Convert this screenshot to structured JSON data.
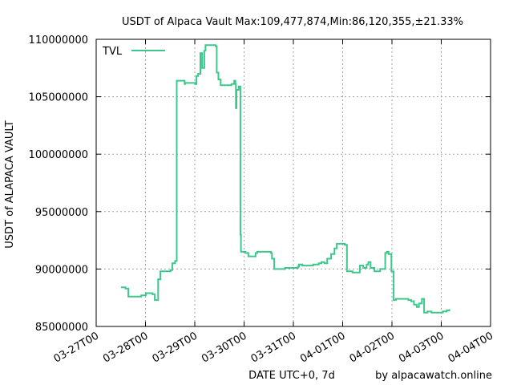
{
  "chart_data": {
    "type": "line",
    "title": "USDT of Alpaca Vault Max:109,477,874,Min:86,120,355,±21.33%",
    "xlabel": "DATE UTC+0, 7d",
    "ylabel": "USDT of ALAPACA VAULT",
    "footer": "by alpacawatch.online",
    "xlim": [
      0,
      7
    ],
    "ylim": [
      85000000,
      110000000
    ],
    "x_ticks": [
      "03-27T00",
      "03-28T00",
      "03-29T00",
      "03-30T00",
      "03-31T00",
      "04-01T00",
      "04-02T00",
      "04-03T00",
      "04-04T00"
    ],
    "y_ticks": [
      85000000,
      90000000,
      95000000,
      100000000,
      105000000,
      110000000
    ],
    "y_tick_labels": [
      "85000000",
      "90000000",
      "95000000",
      "100000000",
      "105000000",
      "110000000"
    ],
    "grid": true,
    "legend_position": "top-left",
    "series": [
      {
        "name": "TVL",
        "color": "#3cc88c",
        "step": true,
        "points": [
          [
            0.44,
            88400000
          ],
          [
            0.52,
            88300000
          ],
          [
            0.57,
            87600000
          ],
          [
            0.8,
            87700000
          ],
          [
            0.88,
            87900000
          ],
          [
            1.0,
            87800000
          ],
          [
            1.04,
            87300000
          ],
          [
            1.1,
            89100000
          ],
          [
            1.14,
            89800000
          ],
          [
            1.32,
            89900000
          ],
          [
            1.35,
            90500000
          ],
          [
            1.4,
            90700000
          ],
          [
            1.43,
            106400000
          ],
          [
            1.57,
            106100000
          ],
          [
            1.58,
            106200000
          ],
          [
            1.76,
            106100000
          ],
          [
            1.78,
            106800000
          ],
          [
            1.81,
            107000000
          ],
          [
            1.85,
            108800000
          ],
          [
            1.88,
            107500000
          ],
          [
            1.92,
            109000000
          ],
          [
            1.94,
            109500000
          ],
          [
            2.12,
            109400000
          ],
          [
            2.14,
            107100000
          ],
          [
            2.17,
            106500000
          ],
          [
            2.21,
            106000000
          ],
          [
            2.4,
            106100000
          ],
          [
            2.45,
            106400000
          ],
          [
            2.47,
            106100000
          ],
          [
            2.48,
            104000000
          ],
          [
            2.49,
            105600000
          ],
          [
            2.53,
            105900000
          ],
          [
            2.56,
            93000000
          ],
          [
            2.57,
            91500000
          ],
          [
            2.65,
            91400000
          ],
          [
            2.7,
            91100000
          ],
          [
            2.83,
            91400000
          ],
          [
            2.86,
            91500000
          ],
          [
            3.1,
            91400000
          ],
          [
            3.12,
            90900000
          ],
          [
            3.16,
            90000000
          ],
          [
            3.35,
            90100000
          ],
          [
            3.58,
            90200000
          ],
          [
            3.6,
            90400000
          ],
          [
            3.66,
            90300000
          ],
          [
            3.85,
            90400000
          ],
          [
            3.95,
            90500000
          ],
          [
            4.0,
            90600000
          ],
          [
            4.05,
            90500000
          ],
          [
            4.1,
            90900000
          ],
          [
            4.17,
            91300000
          ],
          [
            4.23,
            91800000
          ],
          [
            4.27,
            92200000
          ],
          [
            4.41,
            92100000
          ],
          [
            4.45,
            89800000
          ],
          [
            4.55,
            89700000
          ],
          [
            4.68,
            90300000
          ],
          [
            4.74,
            90100000
          ],
          [
            4.8,
            90400000
          ],
          [
            4.83,
            90600000
          ],
          [
            4.87,
            90100000
          ],
          [
            4.94,
            89800000
          ],
          [
            5.04,
            90000000
          ],
          [
            5.13,
            91400000
          ],
          [
            5.16,
            91500000
          ],
          [
            5.19,
            91300000
          ],
          [
            5.24,
            89800000
          ],
          [
            5.28,
            87300000
          ],
          [
            5.32,
            87400000
          ],
          [
            5.54,
            87300000
          ],
          [
            5.59,
            87200000
          ],
          [
            5.64,
            86900000
          ],
          [
            5.69,
            86700000
          ],
          [
            5.73,
            87000000
          ],
          [
            5.78,
            87400000
          ],
          [
            5.82,
            86200000
          ],
          [
            5.88,
            86300000
          ],
          [
            5.95,
            86200000
          ],
          [
            6.15,
            86300000
          ],
          [
            6.22,
            86400000
          ],
          [
            6.27,
            86500000
          ]
        ]
      }
    ]
  }
}
